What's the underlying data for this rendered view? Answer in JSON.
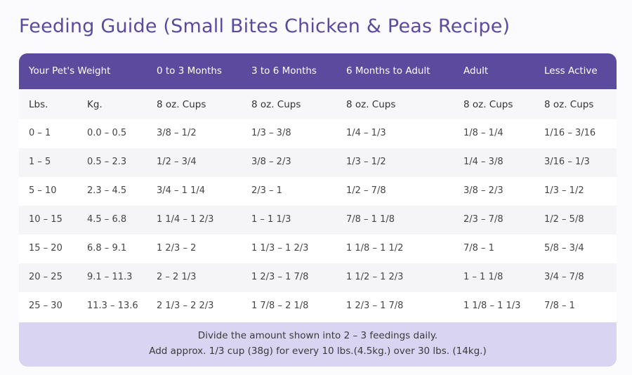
{
  "title": "Feeding Guide (Small Bites Chicken & Peas Recipe)",
  "colors": {
    "header_bg": "#5b4a9e",
    "title": "#5b4a9e",
    "footer_bg": "#d9d4f2",
    "row_alt": "#f5f5f7"
  },
  "table": {
    "headers": {
      "weight": "Your Pet's Weight",
      "col1": "0 to 3 Months",
      "col2": "3 to 6 Months",
      "col3": "6 Months to Adult",
      "col4": "Adult",
      "col5": "Less Active"
    },
    "units": [
      "Lbs.",
      "Kg.",
      "8 oz. Cups",
      "8 oz. Cups",
      "8 oz. Cups",
      "8 oz. Cups",
      "8 oz. Cups"
    ],
    "rows": [
      [
        "0 – 1",
        "0.0 – 0.5",
        "3/8 – 1/2",
        "1/3 – 3/8",
        "1/4 – 1/3",
        "1/8 – 1/4",
        "1/16 – 3/16"
      ],
      [
        "1 – 5",
        "0.5 – 2.3",
        "1/2 – 3/4",
        "3/8 – 2/3",
        "1/3 – 1/2",
        "1/4 – 3/8",
        "3/16 – 1/3"
      ],
      [
        "5 – 10",
        "2.3 – 4.5",
        "3/4 – 1 1/4",
        "2/3 – 1",
        "1/2 – 7/8",
        "3/8 – 2/3",
        "1/3 – 1/2"
      ],
      [
        "10 – 15",
        "4.5 – 6.8",
        "1 1/4 – 1 2/3",
        "1 – 1 1/3",
        "7/8 – 1 1/8",
        "2/3 – 7/8",
        "1/2 – 5/8"
      ],
      [
        "15 – 20",
        "6.8 – 9.1",
        "1 2/3 – 2",
        "1 1/3 – 1 2/3",
        "1 1/8 – 1 1/2",
        "7/8 – 1",
        "5/8 – 3/4"
      ],
      [
        "20 – 25",
        "9.1 – 11.3",
        "2 – 2 1/3",
        "1 2/3 – 1 7/8",
        "1 1/2 – 1 2/3",
        "1 – 1 1/8",
        "3/4 – 7/8"
      ],
      [
        "25 – 30",
        "11.3 – 13.6",
        "2 1/3 – 2 2/3",
        "1 7/8 – 2 1/8",
        "1 2/3 – 1 7/8",
        "1 1/8 – 1 1/3",
        "7/8 – 1"
      ]
    ]
  },
  "footer": {
    "line1": "Divide the amount shown into 2 – 3  feedings daily.",
    "line2": "Add approx. 1/3 cup (38g) for every 10 lbs.(4.5kg.) over 30 lbs. (14kg.)"
  }
}
